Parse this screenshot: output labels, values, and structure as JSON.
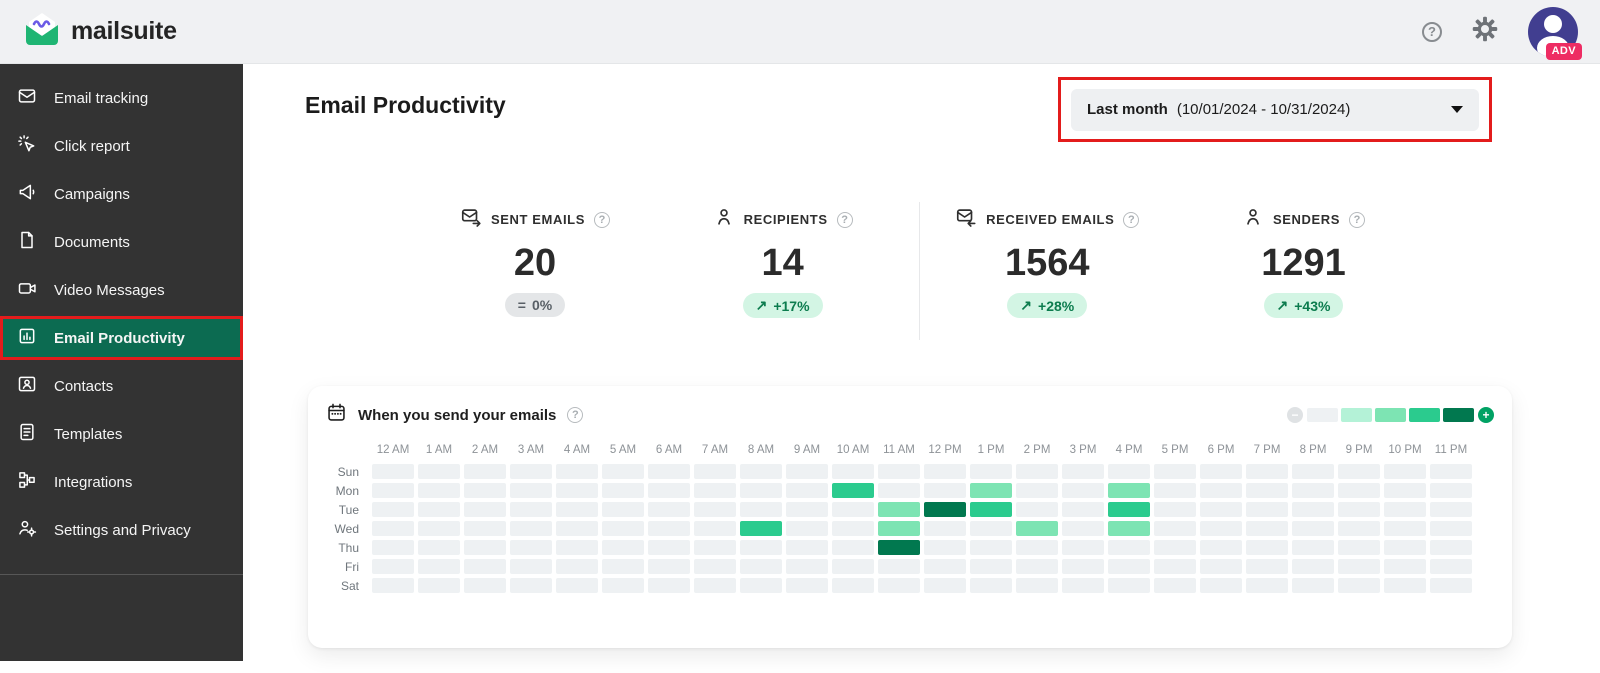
{
  "topbar": {
    "brand": "mailsuite",
    "avatar_badge": "ADV",
    "icons": [
      "help-icon",
      "gear-icon",
      "avatar"
    ]
  },
  "sidebar": {
    "items": [
      {
        "label": "Email tracking",
        "icon": "envelope-icon",
        "active": false
      },
      {
        "label": "Click report",
        "icon": "click-cursor-icon",
        "active": false
      },
      {
        "label": "Campaigns",
        "icon": "megaphone-icon",
        "active": false
      },
      {
        "label": "Documents",
        "icon": "document-icon",
        "active": false
      },
      {
        "label": "Video Messages",
        "icon": "video-camera-icon",
        "active": false
      },
      {
        "label": "Email Productivity",
        "icon": "bar-chart-icon",
        "active": true
      },
      {
        "label": "Contacts",
        "icon": "contact-card-icon",
        "active": false
      },
      {
        "label": "Templates",
        "icon": "template-file-icon",
        "active": false
      },
      {
        "label": "Integrations",
        "icon": "org-chart-icon",
        "active": false
      },
      {
        "label": "Settings and Privacy",
        "icon": "person-gear-icon",
        "active": false
      }
    ]
  },
  "main": {
    "title": "Email Productivity",
    "date_filter": {
      "label": "Last month",
      "range": "(10/01/2024 - 10/31/2024)"
    },
    "stats": [
      {
        "label": "SENT EMAILS",
        "value": "20",
        "delta": "0%",
        "trend": "flat",
        "trend_glyph": "=",
        "icon": "sent-email-icon"
      },
      {
        "label": "RECIPIENTS",
        "value": "14",
        "delta": "+17%",
        "trend": "up",
        "trend_glyph": "↗",
        "icon": "person-icon"
      },
      {
        "label": "RECEIVED EMAILS",
        "value": "1564",
        "delta": "+28%",
        "trend": "up",
        "trend_glyph": "↗",
        "icon": "received-email-icon"
      },
      {
        "label": "SENDERS",
        "value": "1291",
        "delta": "+43%",
        "trend": "up",
        "trend_glyph": "↗",
        "icon": "person-icon"
      }
    ]
  },
  "colors": {
    "sidebar_active_green": "#0c6b51",
    "annotation_red": "#e31c1c",
    "brand_green": "#1fb573",
    "badge_pink": "#ee2c63",
    "avatar_indigo": "#413e90",
    "pill_up_bg": "#d3f5e4",
    "pill_up_text": "#0c7c4e"
  },
  "chart_data": {
    "type": "heatmap",
    "title": "When you send your emails",
    "x_labels": [
      "12 AM",
      "1 AM",
      "2 AM",
      "3 AM",
      "4 AM",
      "5 AM",
      "6 AM",
      "7 AM",
      "8 AM",
      "9 AM",
      "10 AM",
      "11 AM",
      "12 PM",
      "1 PM",
      "2 PM",
      "3 PM",
      "4 PM",
      "5 PM",
      "6 PM",
      "7 PM",
      "8 PM",
      "9 PM",
      "10 PM",
      "11 PM"
    ],
    "y_labels": [
      "Sun",
      "Mon",
      "Tue",
      "Wed",
      "Thu",
      "Fri",
      "Sat"
    ],
    "level_colors": [
      "#eef1f3",
      "#b4f2d7",
      "#7de4b3",
      "#2bcb8e",
      "#01784f"
    ],
    "legend": "low-to-high intensity, minus and plus zoom controls at ends",
    "values": [
      [
        0,
        0,
        0,
        0,
        0,
        0,
        0,
        0,
        0,
        0,
        0,
        0,
        0,
        0,
        0,
        0,
        0,
        0,
        0,
        0,
        0,
        0,
        0,
        0
      ],
      [
        0,
        0,
        0,
        0,
        0,
        0,
        0,
        0,
        0,
        0,
        3,
        0,
        0,
        2,
        0,
        0,
        2,
        0,
        0,
        0,
        0,
        0,
        0,
        0
      ],
      [
        0,
        0,
        0,
        0,
        0,
        0,
        0,
        0,
        0,
        0,
        0,
        2,
        4,
        3,
        0,
        0,
        3,
        0,
        0,
        0,
        0,
        0,
        0,
        0
      ],
      [
        0,
        0,
        0,
        0,
        0,
        0,
        0,
        0,
        3,
        0,
        0,
        2,
        0,
        0,
        2,
        0,
        2,
        0,
        0,
        0,
        0,
        0,
        0,
        0
      ],
      [
        0,
        0,
        0,
        0,
        0,
        0,
        0,
        0,
        0,
        0,
        0,
        4,
        0,
        0,
        0,
        0,
        0,
        0,
        0,
        0,
        0,
        0,
        0,
        0
      ],
      [
        0,
        0,
        0,
        0,
        0,
        0,
        0,
        0,
        0,
        0,
        0,
        0,
        0,
        0,
        0,
        0,
        0,
        0,
        0,
        0,
        0,
        0,
        0,
        0
      ],
      [
        0,
        0,
        0,
        0,
        0,
        0,
        0,
        0,
        0,
        0,
        0,
        0,
        0,
        0,
        0,
        0,
        0,
        0,
        0,
        0,
        0,
        0,
        0,
        0
      ]
    ]
  }
}
